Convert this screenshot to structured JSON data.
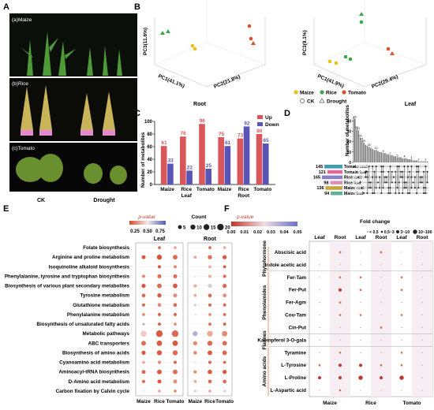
{
  "panel_labels": [
    "A",
    "B",
    "C",
    "D",
    "E",
    "F"
  ],
  "panel_a": {
    "photos": [
      "(a)Maize",
      "(b)Rice",
      "(c)Tomato"
    ],
    "conditions": [
      "CK",
      "Drought"
    ]
  },
  "panel_b": {
    "plots": [
      {
        "name": "Root",
        "x_label": "PC1(41.1%)",
        "y_label": "PC2(21.8%)",
        "z_label": "PC3(11.6%)"
      },
      {
        "name": "Leaf",
        "x_label": "PC1(41.9%)",
        "y_label": "PC2(29.4%)",
        "z_label": "PC3(9.1%)"
      }
    ],
    "legend_species": [
      "Maize",
      "Rice",
      "Tomato"
    ],
    "legend_treat": [
      "CK",
      "Drought"
    ],
    "colors": {
      "Maize": "#e8c21a",
      "Rice": "#3ea64a",
      "Tomato": "#d8532f"
    }
  },
  "chart_data": [
    {
      "type": "bar",
      "panel": "C",
      "ylabel": "Number of metabolites",
      "ylim": [
        0,
        100
      ],
      "yticks": [
        0,
        20,
        40,
        60,
        80,
        100
      ],
      "categories": [
        "Maize",
        "Rice",
        "Tomato",
        "Maize",
        "Rice",
        "Tomato"
      ],
      "groups": [
        "Leaf",
        "Root"
      ],
      "series": [
        {
          "name": "Up",
          "color": "#d9575a",
          "values": [
            61,
            76,
            96,
            75,
            73,
            80
          ]
        },
        {
          "name": "Down",
          "color": "#5a55b5",
          "values": [
            33,
            22,
            25,
            61,
            92,
            65
          ]
        }
      ]
    },
    {
      "type": "bar",
      "panel": "D",
      "ylabel": "Number of metabolites",
      "yticks": [
        0,
        10,
        20,
        30,
        40
      ],
      "values": [
        42,
        32,
        31,
        24,
        21,
        19,
        17,
        16,
        15,
        14,
        13,
        12,
        12,
        11,
        10,
        10,
        9,
        9,
        8,
        8,
        7,
        7,
        6,
        6,
        5,
        5,
        5,
        4,
        4,
        4,
        3,
        3,
        3,
        2,
        2,
        2,
        1,
        1,
        1,
        1,
        1,
        1
      ],
      "sets": [
        "Tomato root",
        "Tomato leaf",
        "Rice root",
        "Rice leaf",
        "Maize root",
        "Maize leaf"
      ],
      "set_sizes": [
        145,
        121,
        165,
        98,
        136,
        94
      ],
      "set_colors": [
        "#3a9fb3",
        "#e3679b",
        "#8b7fc6",
        "#d98fb9",
        "#c9a33b",
        "#5fb09a"
      ]
    },
    {
      "type": "scatter",
      "panel": "E",
      "pathways": [
        "Folate biosynthesis",
        "Arginine and proline metabolism",
        "Isoquinoline alkaloid biosynthesis",
        "Phenylalanine, tyrosine and tryptophan biosynthesis",
        "Biosynthesis of various plant secondary metabolites",
        "Tyrosine metabolism",
        "Glutathione metabolism",
        "Phenylalanine metabolism",
        "Biosynthesis of unsaturated fatty acids",
        "Metabolic pathways",
        "ABC transporters",
        "Biosynthesis of amino acids",
        "Cyanoamino acid metabolism",
        "Aminoacyl-tRNA biosynthesis",
        "D-Amino acid metabolism",
        "Carbon fixation by Calvin cycle"
      ],
      "groups": [
        "Leaf",
        "Root"
      ],
      "columns": [
        "Maize",
        "Rice",
        "Tomato",
        "Maize",
        "Rice",
        "Tomato"
      ],
      "counts": [
        [
          0,
          2,
          2,
          0,
          2,
          2
        ],
        [
          5,
          10,
          8,
          2,
          6,
          6
        ],
        [
          0,
          3,
          3,
          0,
          2,
          2
        ],
        [
          3,
          5,
          5,
          1,
          3,
          3
        ],
        [
          6,
          8,
          8,
          3,
          6,
          6
        ],
        [
          4,
          6,
          5,
          2,
          4,
          4
        ],
        [
          3,
          4,
          4,
          1,
          3,
          3
        ],
        [
          2,
          3,
          3,
          1,
          2,
          2
        ],
        [
          1,
          3,
          2,
          0,
          2,
          2
        ],
        [
          16,
          20,
          20,
          10,
          14,
          12
        ],
        [
          8,
          12,
          12,
          6,
          10,
          8
        ],
        [
          6,
          10,
          10,
          4,
          8,
          8
        ],
        [
          2,
          3,
          3,
          1,
          3,
          2
        ],
        [
          5,
          8,
          8,
          3,
          7,
          6
        ],
        [
          3,
          5,
          5,
          2,
          4,
          4
        ],
        [
          1,
          2,
          2,
          1,
          2,
          1
        ]
      ],
      "pvalues": [
        [
          1,
          0.1,
          0.3,
          1,
          0.1,
          0.3
        ],
        [
          0.05,
          0.02,
          0.1,
          0.3,
          0.1,
          0.05
        ],
        [
          1,
          0.05,
          0.2,
          1,
          0.3,
          0.05
        ],
        [
          0.2,
          0.1,
          0.1,
          0.5,
          0.3,
          0.1
        ],
        [
          0.05,
          0.1,
          0.05,
          0.3,
          0.6,
          0.1
        ],
        [
          0.1,
          0.05,
          0.2,
          0.3,
          0.1,
          0.2
        ],
        [
          0.1,
          0.2,
          0.1,
          0.6,
          0.1,
          0.1
        ],
        [
          0.2,
          0.1,
          0.1,
          0.5,
          0.2,
          0.1
        ],
        [
          0.7,
          0.1,
          0.2,
          1,
          0.1,
          0.05
        ],
        [
          0.4,
          0.05,
          0.1,
          0.7,
          0.3,
          0.2
        ],
        [
          0.1,
          0.05,
          0.05,
          0.2,
          0.1,
          0.1
        ],
        [
          0.05,
          0.05,
          0.1,
          0.2,
          0.05,
          0.1
        ],
        [
          0.3,
          0.2,
          0.1,
          0.5,
          0.1,
          0.1
        ],
        [
          0.1,
          0.05,
          0.1,
          0.2,
          0.05,
          0.05
        ],
        [
          0.1,
          0.05,
          0.2,
          0.3,
          0.1,
          0.1
        ],
        [
          0.5,
          0.3,
          0.2,
          0.6,
          0.3,
          0.4
        ]
      ],
      "pvalue_ticks": [
        "0.25",
        "0.50",
        "0.75"
      ],
      "count_ticks": [
        5,
        10,
        15,
        20
      ],
      "legend_titles": {
        "pvalue": "p-value",
        "count": "Count"
      }
    },
    {
      "type": "scatter",
      "panel": "F",
      "categories": [
        {
          "name": "Phytohormone",
          "items": [
            "Abscisic acid",
            "Indole acetic acid"
          ]
        },
        {
          "name": "Phenolamides",
          "items": [
            "Fer-Tam",
            "Fer-Put",
            "Fer-Agm",
            "Cou-Tam",
            "Cin-Put"
          ]
        },
        {
          "name": "Flavnes",
          "items": [
            "Kaempferol 3-O-gala"
          ]
        },
        {
          "name": "Amino acids",
          "items": [
            "Tyramine",
            "L-Tyrosine",
            "L-Proline",
            "L-Aspartic acid"
          ]
        }
      ],
      "columns": [
        "Leaf",
        "Root",
        "Leaf",
        "Root",
        "Leaf",
        "Root"
      ],
      "species": [
        "Maize",
        "Rice",
        "Tomato"
      ],
      "pvalue_ticks": [
        "0.00",
        "0.01",
        "0.02",
        "0.03",
        "0.04",
        "0.05"
      ],
      "foldchange_ticks": [
        "< 0.5",
        "0.5~3",
        "3~10",
        "10~100"
      ],
      "legend_titles": {
        "pvalue": "p-value",
        "fold": "Fold change"
      },
      "fold": [
        [
          1,
          2,
          1,
          2,
          1,
          1
        ],
        [
          1,
          1,
          1,
          1,
          1,
          1
        ],
        [
          1,
          2,
          2,
          1,
          2,
          1
        ],
        [
          1,
          3,
          2,
          1,
          2,
          1
        ],
        [
          1,
          2,
          1,
          1,
          1,
          1
        ],
        [
          1,
          2,
          2,
          1,
          2,
          1
        ],
        [
          1,
          1,
          1,
          2,
          1,
          1
        ],
        [
          1,
          1,
          1,
          1,
          1,
          1
        ],
        [
          1,
          2,
          1,
          1,
          2,
          1
        ],
        [
          2,
          3,
          3,
          2,
          2,
          1
        ],
        [
          3,
          3,
          4,
          3,
          4,
          1
        ],
        [
          1,
          2,
          1,
          1,
          1,
          1
        ]
      ]
    }
  ]
}
